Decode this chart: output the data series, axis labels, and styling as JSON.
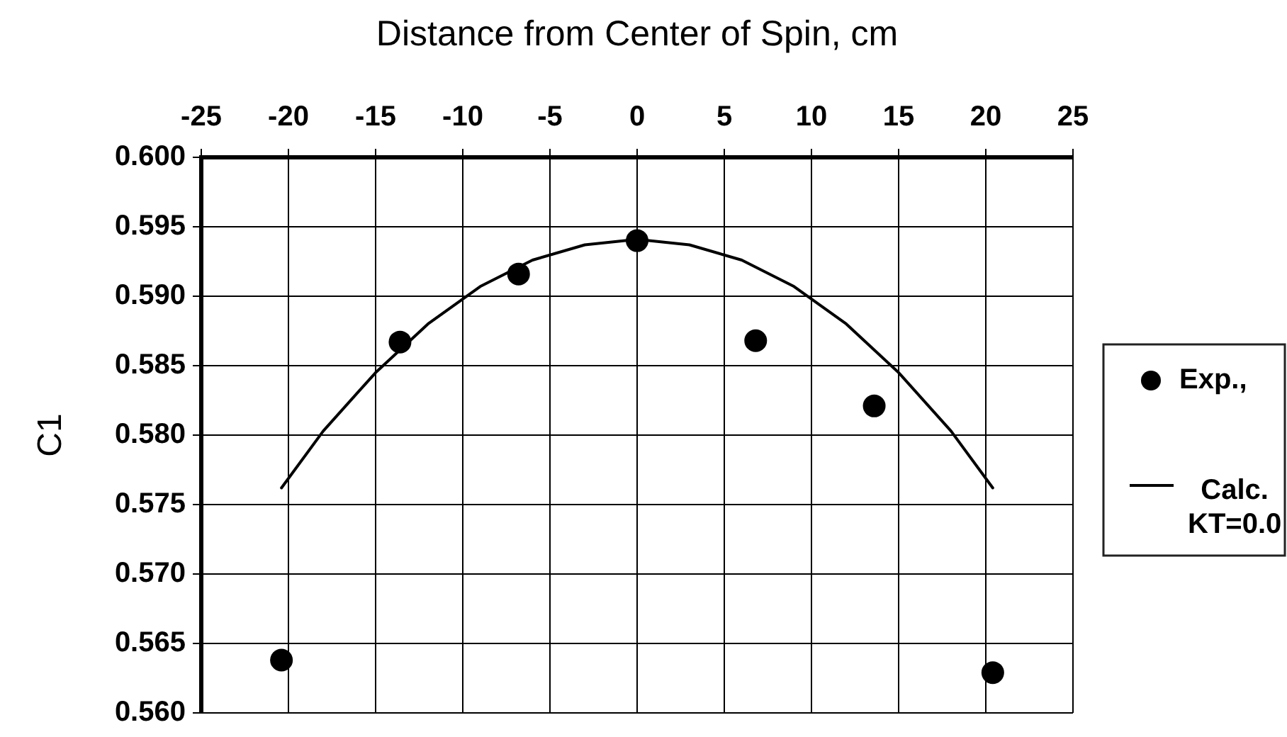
{
  "chart_data": {
    "type": "scatter",
    "xlabel": "Distance from Center of Spin, cm",
    "ylabel": "C1",
    "xlim": [
      -25,
      25
    ],
    "xticks": [
      -25,
      -20,
      -15,
      -10,
      -5,
      0,
      5,
      10,
      15,
      20,
      25
    ],
    "ylim": [
      0.56,
      0.6
    ],
    "yticks": [
      {
        "value": 0.56,
        "label": "0.560"
      },
      {
        "value": 0.565,
        "label": "0.565"
      },
      {
        "value": 0.57,
        "label": "0.570"
      },
      {
        "value": 0.575,
        "label": "0.575"
      },
      {
        "value": 0.58,
        "label": "0.580"
      },
      {
        "value": 0.585,
        "label": "0.585"
      },
      {
        "value": 0.59,
        "label": "0.590"
      },
      {
        "value": 0.595,
        "label": "0.595"
      },
      {
        "value": 0.6,
        "label": "0.600"
      }
    ],
    "grid": true,
    "legend": "right",
    "marker": "circle",
    "series": [
      {
        "name": "Exp.,",
        "color": "#000000",
        "x": [
          -20.4,
          -13.6,
          -6.8,
          0,
          6.8,
          13.6,
          20.4
        ],
        "values": [
          0.5638,
          0.5867,
          0.5916,
          0.594,
          0.5868,
          0.5821,
          0.5629
        ]
      },
      {
        "name": "Calc. KT=0.0",
        "type": "line",
        "marker": "none",
        "color": "#000000",
        "x": [
          -20.4,
          -18,
          -15,
          -12,
          -9,
          -6,
          -3,
          0,
          3,
          6,
          9,
          12,
          15,
          18,
          20.4
        ],
        "values": [
          0.5762,
          0.5803,
          0.5845,
          0.588,
          0.5907,
          0.5926,
          0.5937,
          0.5941,
          0.5937,
          0.5926,
          0.5907,
          0.588,
          0.5845,
          0.5803,
          0.5762
        ]
      }
    ]
  }
}
